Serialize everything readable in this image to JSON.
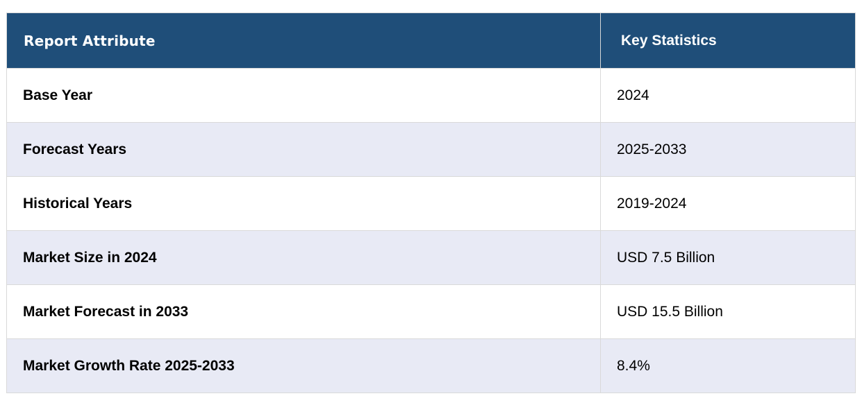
{
  "table": {
    "headers": [
      "Report Attribute",
      "Key Statistics"
    ],
    "rows": [
      {
        "attribute": "Base Year",
        "value": "2024"
      },
      {
        "attribute": "Forecast Years",
        "value": "2025-2033"
      },
      {
        "attribute": "Historical Years",
        "value": "2019-2024"
      },
      {
        "attribute": "Market Size in 2024",
        "value": "USD 7.5 Billion"
      },
      {
        "attribute": "Market Forecast in 2033",
        "value": "USD 15.5 Billion"
      },
      {
        "attribute": "Market Growth Rate 2025-2033",
        "value": "8.4%"
      }
    ]
  },
  "colors": {
    "header_bg": "#1f4e79",
    "header_text": "#ffffff",
    "row_alt_bg": "#e8eaf5",
    "row_bg": "#ffffff",
    "border": "#d9d9d9"
  }
}
